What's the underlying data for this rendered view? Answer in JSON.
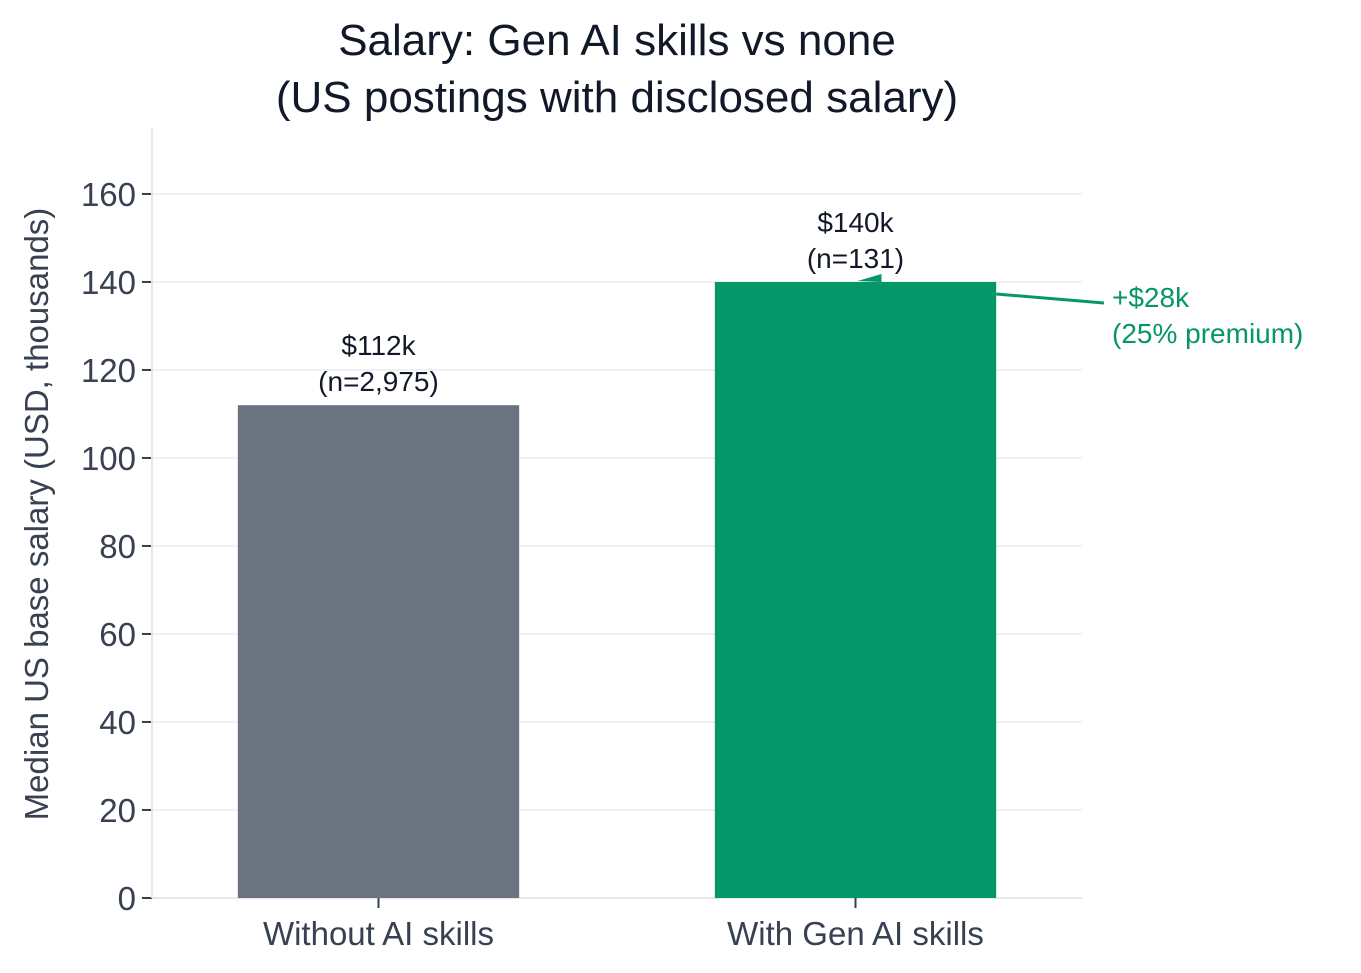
{
  "chart_data": {
    "type": "bar",
    "title_lines": [
      "Salary: Gen AI skills vs none",
      "(US postings with disclosed salary)"
    ],
    "xlabel": "",
    "ylabel": "Median US base salary (USD, thousands)",
    "ylim": [
      0,
      175
    ],
    "yticks": [
      0,
      20,
      40,
      60,
      80,
      100,
      120,
      140,
      160
    ],
    "grid": true,
    "categories": [
      "Without AI skills",
      "With Gen AI skills"
    ],
    "values": [
      112,
      140
    ],
    "bar_colors": [
      "#6b7280",
      "#059669"
    ],
    "data_labels": [
      [
        "$112k",
        "(n=2,975)"
      ],
      [
        "$140k",
        "(n=131)"
      ]
    ],
    "annotation": {
      "lines": [
        "+$28k",
        "(25% premium)"
      ],
      "color": "#059669"
    }
  }
}
